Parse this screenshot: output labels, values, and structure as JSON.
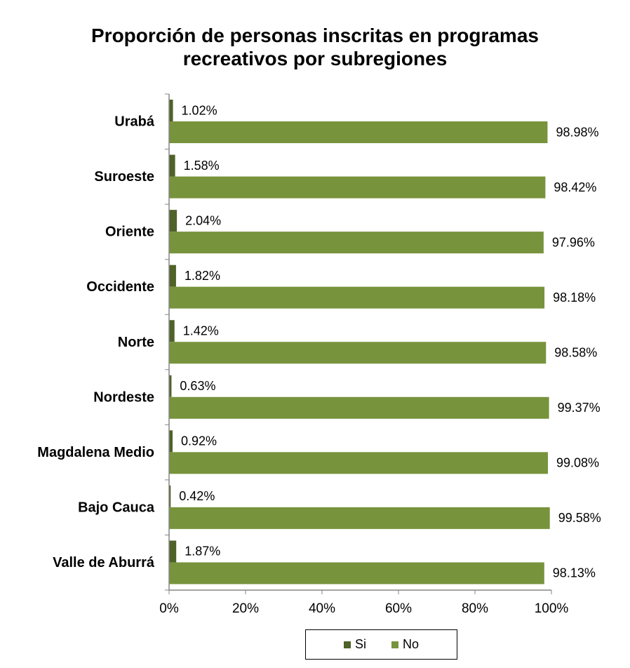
{
  "chart_data": {
    "type": "bar",
    "orientation": "horizontal",
    "title": "Proporción de personas inscritas en programas recreativos por subregiones",
    "title_lines": [
      "Proporción de personas inscritas en programas",
      "recreativos por subregiones"
    ],
    "categories": [
      "Urabá",
      "Suroeste",
      "Oriente",
      "Occidente",
      "Norte",
      "Nordeste",
      "Magdalena Medio",
      "Bajo Cauca",
      "Valle de Aburrá"
    ],
    "series": [
      {
        "name": "Si",
        "color": "#4f6228",
        "values": [
          1.02,
          1.58,
          2.04,
          1.82,
          1.42,
          0.63,
          0.92,
          0.42,
          1.87
        ],
        "labels": [
          "1.02%",
          "1.58%",
          "2.04%",
          "1.82%",
          "1.42%",
          "0.63%",
          "0.92%",
          "0.42%",
          "1.87%"
        ]
      },
      {
        "name": "No",
        "color": "#77933c",
        "values": [
          98.98,
          98.42,
          97.96,
          98.18,
          98.58,
          99.37,
          99.08,
          99.58,
          98.13
        ],
        "labels": [
          "98.98%",
          "98.42%",
          "97.96%",
          "98.18%",
          "98.58%",
          "99.37%",
          "99.08%",
          "99.58%",
          "98.13%"
        ]
      }
    ],
    "xlim": [
      0,
      100
    ],
    "xticks": [
      0,
      20,
      40,
      60,
      80,
      100
    ],
    "xtick_labels": [
      "0%",
      "20%",
      "40%",
      "60%",
      "80%",
      "100%"
    ],
    "grid": false,
    "legend": {
      "position": "bottom",
      "entries": [
        "Si",
        "No"
      ]
    }
  }
}
